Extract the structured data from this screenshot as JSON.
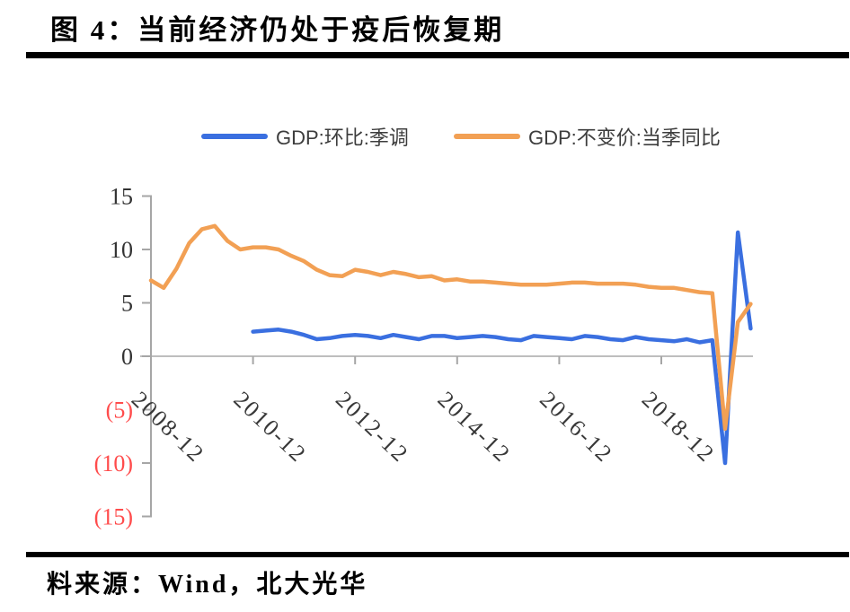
{
  "header": {
    "title": "图 4：当前经济仍处于疫后恢复期"
  },
  "legend": {
    "items": [
      {
        "label": "GDP:环比:季调",
        "color": "#3A6FE0"
      },
      {
        "label": "GDP:不变价:当季同比",
        "color": "#F2A054"
      }
    ]
  },
  "footer": {
    "source": "料来源：Wind，北大光华"
  },
  "colors": {
    "blue_series": "#3A6FE0",
    "orange_series": "#F2A054",
    "negative_tick": "#FF4C4C",
    "axis": "#A6A6A6",
    "zero_line": "#BEBEBE",
    "rule": "#000000"
  },
  "chart_data": {
    "type": "line",
    "title": "图 4：当前经济仍处于疫后恢复期",
    "x_unit": "quarter",
    "quarters": [
      "2008Q4",
      "2009Q1",
      "2009Q2",
      "2009Q3",
      "2009Q4",
      "2010Q1",
      "2010Q2",
      "2010Q3",
      "2010Q4",
      "2011Q1",
      "2011Q2",
      "2011Q3",
      "2011Q4",
      "2012Q1",
      "2012Q2",
      "2012Q3",
      "2012Q4",
      "2013Q1",
      "2013Q2",
      "2013Q3",
      "2013Q4",
      "2014Q1",
      "2014Q2",
      "2014Q3",
      "2014Q4",
      "2015Q1",
      "2015Q2",
      "2015Q3",
      "2015Q4",
      "2016Q1",
      "2016Q2",
      "2016Q3",
      "2016Q4",
      "2017Q1",
      "2017Q2",
      "2017Q3",
      "2017Q4",
      "2018Q1",
      "2018Q2",
      "2018Q3",
      "2018Q4",
      "2019Q1",
      "2019Q2",
      "2019Q3",
      "2019Q4",
      "2020Q1",
      "2020Q2",
      "2020Q3"
    ],
    "x_tick_labels": [
      "2008-12",
      "2010-12",
      "2012-12",
      "2014-12",
      "2016-12",
      "2018-12"
    ],
    "x_tick_indices": [
      0,
      8,
      16,
      24,
      32,
      40
    ],
    "ylim": [
      -15,
      15
    ],
    "y_ticks": [
      15,
      10,
      5,
      0,
      -5,
      -10,
      -15
    ],
    "y_tick_labels": [
      "15",
      "10",
      "5",
      "0",
      "(5)",
      "(10)",
      "(15)"
    ],
    "grid": "zero-line-only",
    "legend_position": "top-center",
    "series": [
      {
        "name": "GDP:环比:季调",
        "color": "#3A6FE0",
        "start_index": 8,
        "values": [
          2.3,
          2.4,
          2.5,
          2.3,
          2.0,
          1.6,
          1.7,
          1.9,
          2.0,
          1.9,
          1.7,
          2.0,
          1.8,
          1.6,
          1.9,
          1.9,
          1.7,
          1.8,
          1.9,
          1.8,
          1.6,
          1.5,
          1.9,
          1.8,
          1.7,
          1.6,
          1.9,
          1.8,
          1.6,
          1.5,
          1.8,
          1.6,
          1.5,
          1.4,
          1.6,
          1.3,
          1.5,
          -10.0,
          11.6,
          2.6
        ]
      },
      {
        "name": "GDP:不变价:当季同比",
        "color": "#F2A054",
        "start_index": 0,
        "values": [
          7.1,
          6.4,
          8.2,
          10.6,
          11.9,
          12.2,
          10.8,
          10.0,
          10.2,
          10.2,
          10.0,
          9.4,
          8.9,
          8.1,
          7.6,
          7.5,
          8.1,
          7.9,
          7.6,
          7.9,
          7.7,
          7.4,
          7.5,
          7.1,
          7.2,
          7.0,
          7.0,
          6.9,
          6.8,
          6.7,
          6.7,
          6.7,
          6.8,
          6.9,
          6.9,
          6.8,
          6.8,
          6.8,
          6.7,
          6.5,
          6.4,
          6.4,
          6.2,
          6.0,
          5.9,
          -6.8,
          3.2,
          4.9
        ]
      }
    ]
  }
}
